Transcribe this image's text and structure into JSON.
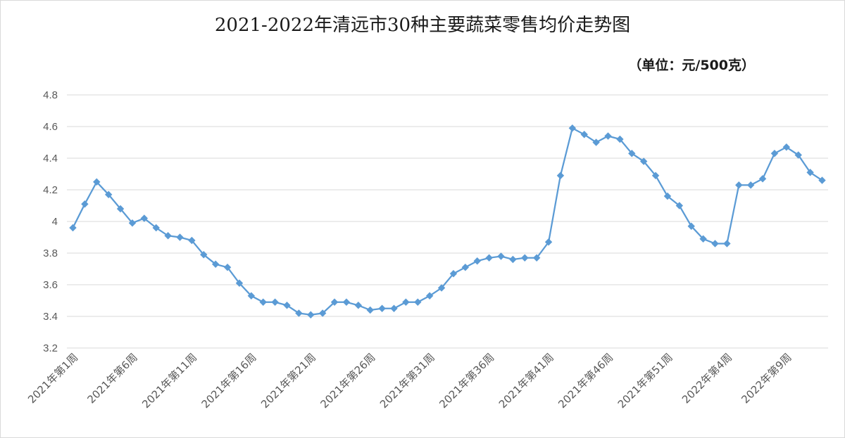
{
  "chart_data": {
    "type": "line",
    "title": "2021-2022年清远市30种主要蔬菜零售均价走势图",
    "unit_label": "（单位：元/500克）",
    "ylim": [
      3.2,
      4.8
    ],
    "yticks": [
      "3.2",
      "3.4",
      "3.6",
      "3.8",
      "4",
      "4.2",
      "4.4",
      "4.6",
      "4.8"
    ],
    "grid": true,
    "legend": "none",
    "x_tick_labels": [
      "2021年第1周",
      "2021年第6周",
      "2021年第11周",
      "2021年第16周",
      "2021年第21周",
      "2021年第26周",
      "2021年第31周",
      "2021年第36周",
      "2021年第41周",
      "2021年第46周",
      "2021年第51周",
      "2022年第4周",
      "2022年第9周"
    ],
    "x_tick_every": 5,
    "series": [
      {
        "color": "#5b9bd5",
        "marker": "diamond",
        "values": [
          3.96,
          4.11,
          4.25,
          4.17,
          4.08,
          3.99,
          4.02,
          3.96,
          3.91,
          3.9,
          3.88,
          3.79,
          3.73,
          3.71,
          3.61,
          3.53,
          3.49,
          3.49,
          3.47,
          3.42,
          3.41,
          3.42,
          3.49,
          3.49,
          3.47,
          3.44,
          3.45,
          3.45,
          3.49,
          3.49,
          3.53,
          3.58,
          3.67,
          3.71,
          3.75,
          3.77,
          3.78,
          3.76,
          3.77,
          3.77,
          3.87,
          4.29,
          4.59,
          4.55,
          4.5,
          4.54,
          4.52,
          4.43,
          4.38,
          4.29,
          4.16,
          4.1,
          3.97,
          3.89,
          3.86,
          3.86,
          4.23,
          4.23,
          4.27,
          4.43,
          4.47,
          4.42,
          4.31,
          4.26
        ]
      }
    ]
  }
}
